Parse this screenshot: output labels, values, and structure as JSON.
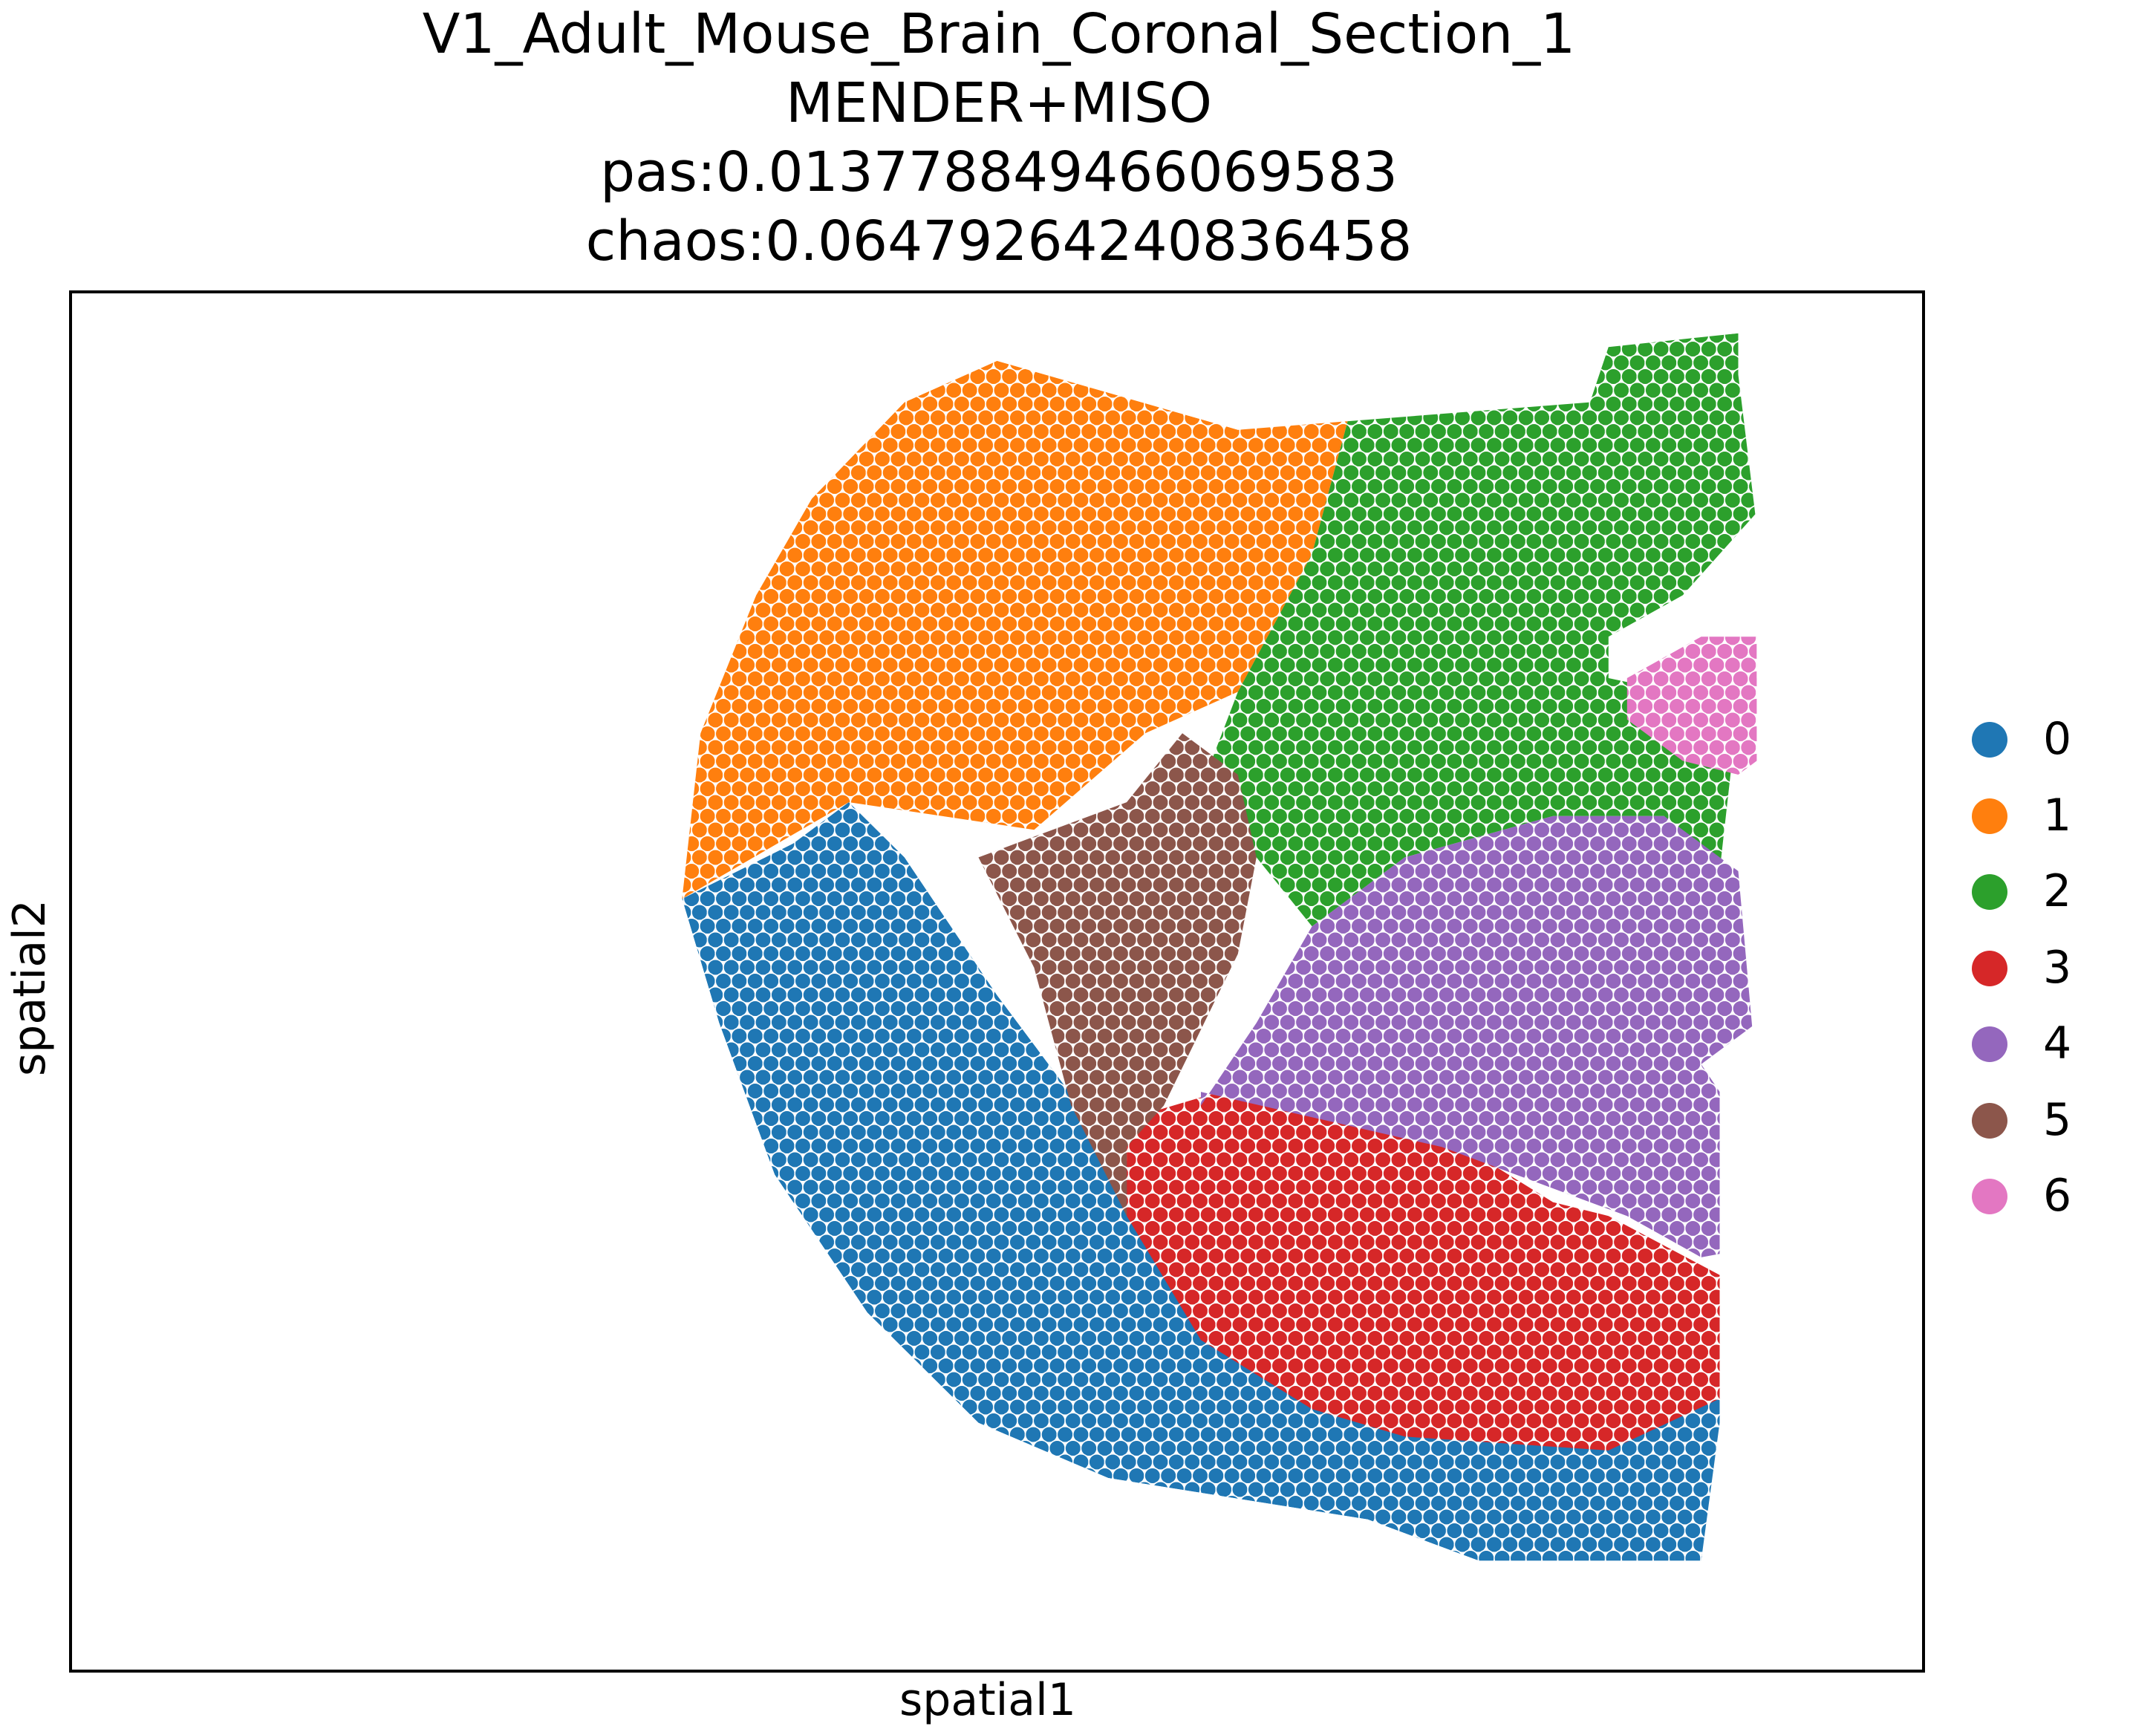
{
  "title_lines": [
    "V1_Adult_Mouse_Brain_Coronal_Section_1",
    "MENDER+MISO",
    "pas:0.013778849466069583",
    "chaos:0.06479264240836458"
  ],
  "chart_data": {
    "type": "scatter",
    "title": "V1_Adult_Mouse_Brain_Coronal_Section_1 MENDER+MISO pas:0.013778849466069583 chaos:0.06479264240836458",
    "xlabel": "spatial1",
    "ylabel": "spatial2",
    "ticks": "none",
    "grid": false,
    "legend_placement": "right",
    "tissue_outline": [
      [
        50,
        5
      ],
      [
        63,
        10
      ],
      [
        82,
        8
      ],
      [
        83,
        4
      ],
      [
        90,
        3
      ],
      [
        90,
        6
      ],
      [
        91,
        17
      ],
      [
        91,
        42
      ],
      [
        92,
        52
      ],
      [
        88,
        56
      ],
      [
        89,
        58
      ],
      [
        89,
        69
      ],
      [
        89,
        82
      ],
      [
        88,
        92
      ],
      [
        76,
        92
      ],
      [
        70,
        89
      ],
      [
        56,
        86
      ],
      [
        49,
        82
      ],
      [
        43,
        74
      ],
      [
        38,
        64
      ],
      [
        35,
        53
      ],
      [
        33,
        44
      ],
      [
        34,
        32
      ],
      [
        37,
        22
      ],
      [
        40,
        15
      ],
      [
        45,
        8
      ]
    ],
    "regions": [
      {
        "label": "0",
        "polygon": [
          [
            33,
            44
          ],
          [
            39,
            40
          ],
          [
            42,
            37
          ],
          [
            45,
            41
          ],
          [
            50,
            51
          ],
          [
            55,
            60
          ],
          [
            63,
            72
          ],
          [
            70,
            77
          ],
          [
            75,
            81
          ],
          [
            82,
            81
          ],
          [
            90,
            79
          ],
          [
            89,
            92
          ],
          [
            76,
            92
          ],
          [
            70,
            89
          ],
          [
            56,
            86
          ],
          [
            49,
            82
          ],
          [
            43,
            74
          ],
          [
            38,
            64
          ],
          [
            35,
            53
          ]
        ]
      },
      {
        "label": "1",
        "polygon": [
          [
            50,
            5
          ],
          [
            63,
            10
          ],
          [
            69,
            9
          ],
          [
            67,
            19
          ],
          [
            63,
            29
          ],
          [
            58,
            32
          ],
          [
            52,
            39
          ],
          [
            42,
            37
          ],
          [
            33,
            44
          ],
          [
            33,
            35
          ],
          [
            37,
            22
          ],
          [
            40,
            15
          ],
          [
            45,
            8
          ]
        ]
      },
      {
        "label": "2",
        "polygon": [
          [
            69,
            9
          ],
          [
            69,
            8
          ],
          [
            81,
            8
          ],
          [
            82,
            4
          ],
          [
            90,
            3
          ],
          [
            91,
            16
          ],
          [
            87,
            22
          ],
          [
            83,
            25
          ],
          [
            83,
            28
          ],
          [
            90,
            30
          ],
          [
            89,
            42
          ],
          [
            86,
            38
          ],
          [
            80,
            38
          ],
          [
            72,
            41
          ],
          [
            67,
            46
          ],
          [
            61,
            36
          ],
          [
            63,
            29
          ],
          [
            67,
            19
          ]
        ]
      },
      {
        "label": "3",
        "polygon": [
          [
            57,
            60
          ],
          [
            62,
            58
          ],
          [
            74,
            61
          ],
          [
            80,
            66
          ],
          [
            83,
            67
          ],
          [
            90,
            72
          ],
          [
            91,
            79
          ],
          [
            83,
            84
          ],
          [
            72,
            83
          ],
          [
            67,
            81
          ],
          [
            61,
            76
          ],
          [
            57,
            67
          ]
        ]
      },
      {
        "label": "4",
        "polygon": [
          [
            61,
            59
          ],
          [
            64,
            53
          ],
          [
            67,
            46
          ],
          [
            72,
            41
          ],
          [
            80,
            38
          ],
          [
            86,
            38
          ],
          [
            90,
            42
          ],
          [
            91,
            57
          ],
          [
            92,
            69
          ],
          [
            88,
            70
          ],
          [
            84,
            67
          ],
          [
            74,
            62
          ],
          [
            61,
            58
          ]
        ]
      },
      {
        "label": "5",
        "polygon": [
          [
            49,
            41
          ],
          [
            53,
            39
          ],
          [
            57,
            37
          ],
          [
            60,
            32
          ],
          [
            63,
            35
          ],
          [
            64,
            41
          ],
          [
            63,
            48
          ],
          [
            59,
            59
          ],
          [
            57,
            62
          ],
          [
            57,
            67
          ],
          [
            54,
            59
          ],
          [
            52,
            49
          ]
        ]
      },
      {
        "label": "6",
        "polygon": [
          [
            88,
            25
          ],
          [
            91,
            25
          ],
          [
            91,
            28
          ],
          [
            92,
            33
          ],
          [
            90,
            35
          ],
          [
            87,
            34
          ],
          [
            84,
            31
          ],
          [
            84,
            28
          ]
        ]
      }
    ],
    "legend": [
      "0",
      "1",
      "2",
      "3",
      "4",
      "5",
      "6"
    ],
    "colors": [
      "#1f77b4",
      "#ff7f0e",
      "#2ca02c",
      "#d62728",
      "#9467bd",
      "#8c564b",
      "#e377c2"
    ]
  }
}
